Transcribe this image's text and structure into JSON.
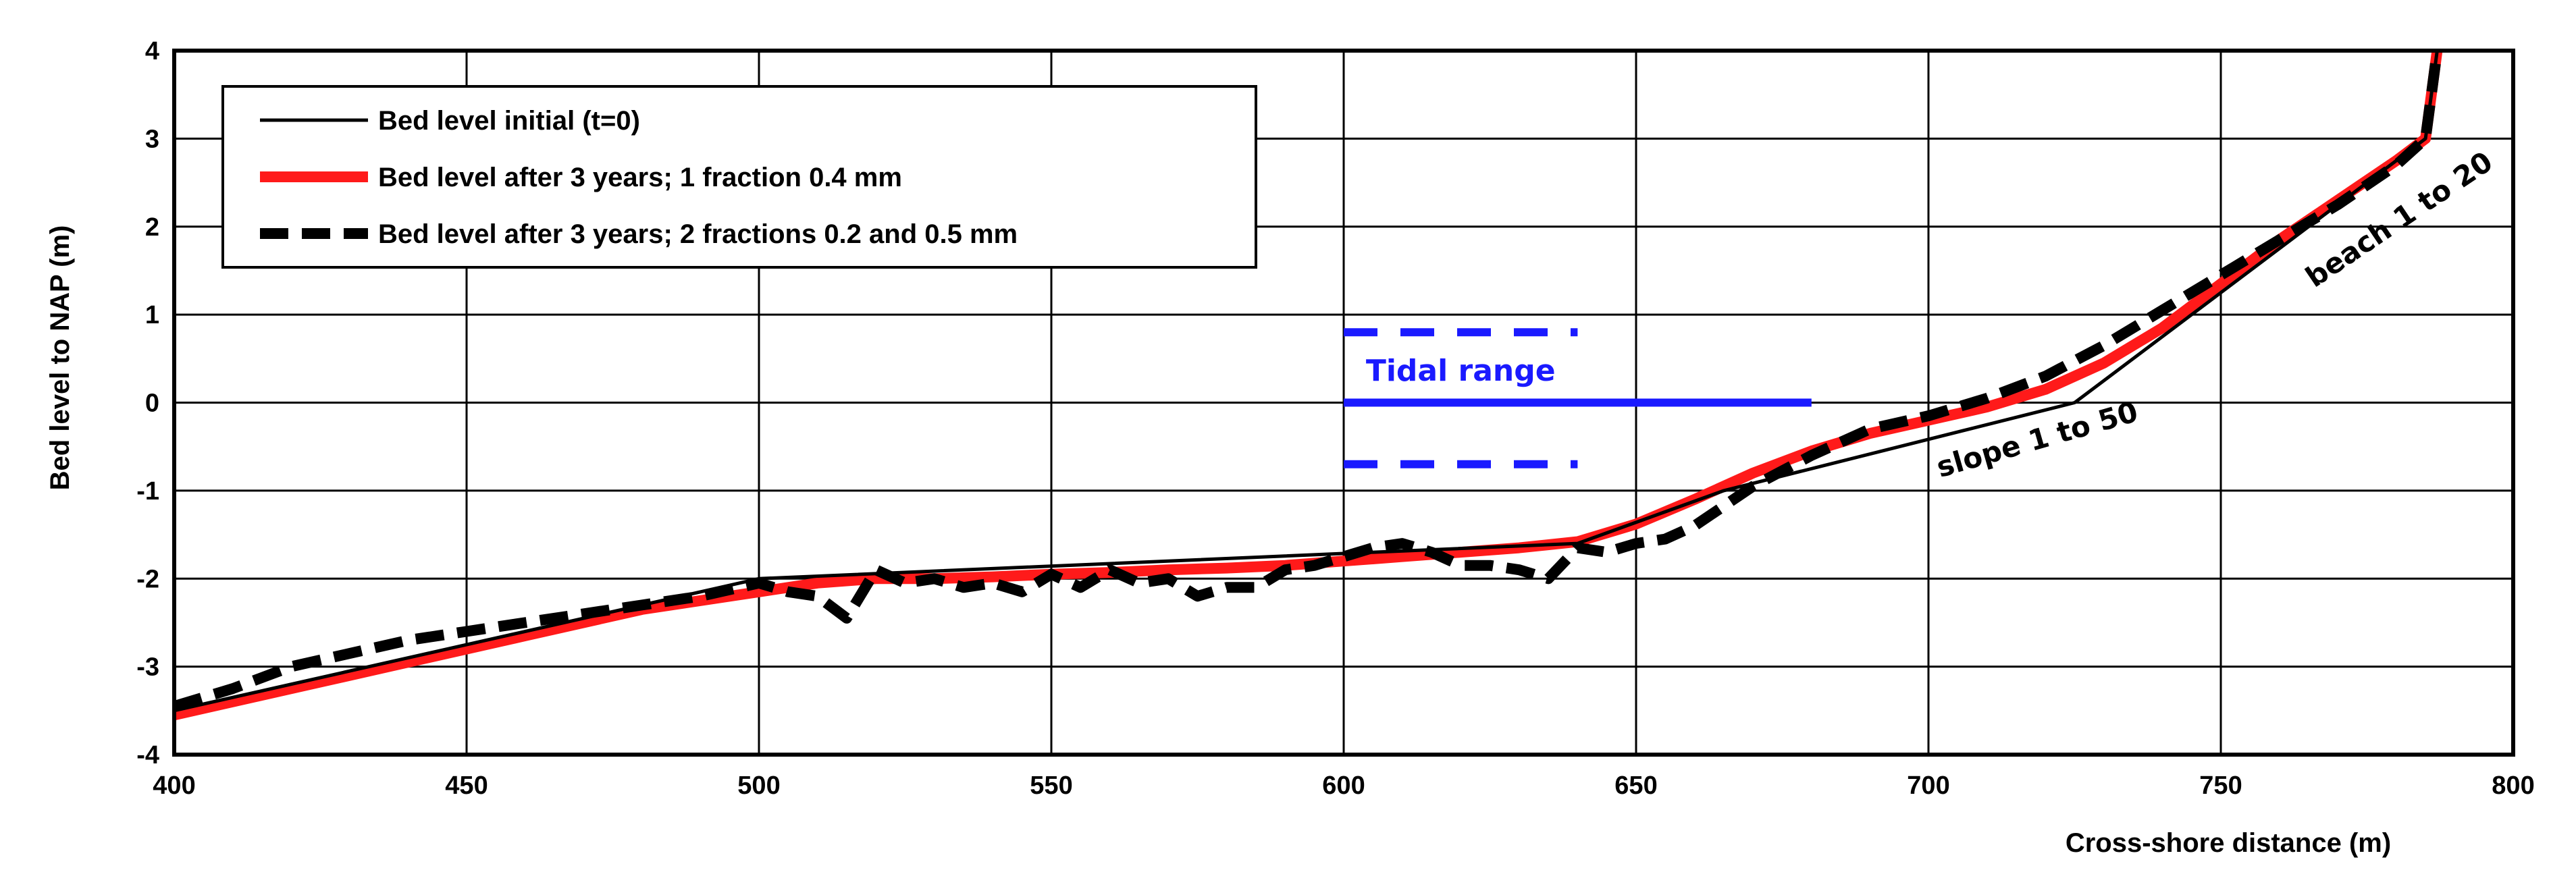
{
  "chart_data": {
    "type": "line",
    "title": "",
    "xlabel": "Cross-shore distance (m)",
    "ylabel": "Bed level to NAP (m)",
    "xlim": [
      400,
      800
    ],
    "ylim": [
      -4,
      4
    ],
    "xticks": [
      400,
      450,
      500,
      550,
      600,
      650,
      700,
      750,
      800
    ],
    "yticks": [
      -4,
      -3,
      -2,
      -1,
      0,
      1,
      2,
      3,
      4
    ],
    "xtick_labels": [
      "400",
      "450",
      "500",
      "550",
      "600",
      "650",
      "700",
      "750",
      "800"
    ],
    "ytick_labels": [
      "-4",
      "-3",
      "-2",
      "-1",
      "0",
      "1",
      "2",
      "3",
      "4"
    ],
    "grid": true,
    "legend_position": "top-left",
    "series": [
      {
        "name": "Bed level initial (t=0)",
        "color": "#000000",
        "style": "solid-thin",
        "x": [
          400,
          500,
          640,
          665,
          725,
          785,
          787
        ],
        "y": [
          -3.5,
          -2.0,
          -1.6,
          -1.0,
          0.0,
          3.0,
          4.0
        ]
      },
      {
        "name": "Bed level after 3 years; 1 fraction 0.4 mm",
        "color": "#ff1a1a",
        "style": "solid-thick",
        "x": [
          400,
          420,
          440,
          460,
          480,
          500,
          510,
          520,
          530,
          540,
          550,
          560,
          570,
          580,
          590,
          600,
          610,
          620,
          630,
          640,
          650,
          660,
          670,
          680,
          690,
          700,
          710,
          720,
          730,
          740,
          750,
          760,
          770,
          780,
          785,
          787
        ],
        "y": [
          -3.55,
          -3.25,
          -2.95,
          -2.65,
          -2.35,
          -2.15,
          -2.05,
          -2.0,
          -2.0,
          -1.98,
          -1.95,
          -1.93,
          -1.9,
          -1.88,
          -1.85,
          -1.8,
          -1.75,
          -1.7,
          -1.65,
          -1.58,
          -1.38,
          -1.1,
          -0.8,
          -0.55,
          -0.35,
          -0.2,
          -0.05,
          0.15,
          0.45,
          0.85,
          1.35,
          1.85,
          2.3,
          2.75,
          3.0,
          4.0
        ]
      },
      {
        "name": "Bed level after 3 years; 2 fractions 0.2 and 0.5 mm",
        "color": "#000000",
        "style": "dashed-thick",
        "x": [
          400,
          410,
          420,
          430,
          440,
          450,
          460,
          470,
          480,
          490,
          500,
          505,
          510,
          515,
          520,
          525,
          530,
          535,
          540,
          545,
          550,
          555,
          560,
          565,
          570,
          575,
          580,
          585,
          590,
          595,
          600,
          605,
          610,
          615,
          620,
          625,
          630,
          635,
          640,
          645,
          650,
          655,
          660,
          670,
          680,
          690,
          700,
          710,
          720,
          730,
          740,
          750,
          760,
          770,
          780,
          785,
          787
        ],
        "y": [
          -3.45,
          -3.25,
          -3.0,
          -2.85,
          -2.7,
          -2.6,
          -2.5,
          -2.4,
          -2.3,
          -2.2,
          -2.05,
          -2.15,
          -2.2,
          -2.45,
          -1.9,
          -2.05,
          -2.0,
          -2.1,
          -2.05,
          -2.15,
          -1.95,
          -2.1,
          -1.9,
          -2.05,
          -2.0,
          -2.2,
          -2.1,
          -2.1,
          -1.9,
          -1.85,
          -1.75,
          -1.65,
          -1.6,
          -1.7,
          -1.85,
          -1.85,
          -1.9,
          -2.0,
          -1.65,
          -1.7,
          -1.6,
          -1.55,
          -1.4,
          -0.95,
          -0.6,
          -0.3,
          -0.15,
          0.05,
          0.3,
          0.65,
          1.05,
          1.45,
          1.85,
          2.25,
          2.7,
          3.0,
          4.0
        ]
      }
    ],
    "tidal_range": {
      "label": "Tidal range",
      "color": "#1a1aff",
      "x_start": 600,
      "x_end_mean": 680,
      "x_end_extremes": 640,
      "high_water": 0.8,
      "mean_water": 0.0,
      "low_water": -0.7
    },
    "annotations": [
      {
        "text": "slope 1 to 50",
        "x": 702,
        "y": -0.85,
        "angle": -16
      },
      {
        "text": "beach 1 to 20",
        "x": 766,
        "y": 1.3,
        "angle": -34
      }
    ]
  }
}
